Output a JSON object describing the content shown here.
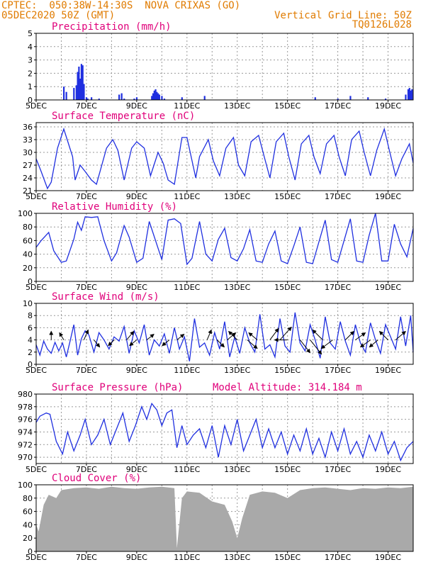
{
  "header": {
    "line1_left": "CPTEC:  050:38W-14:30S  NOVA CRIXAS (GO)",
    "line2_left": "05DEC2020 50Z (GMT)",
    "line2_right": "Vertical Grid Line: 50Z",
    "line3_right": "TQ0126L028"
  },
  "colors": {
    "header": "#e07b00",
    "title": "#e0007a",
    "series": "#1f2fe0",
    "bars": "#1f2fe0",
    "cloud": "#a9a9a9"
  },
  "chart_data": [
    {
      "type": "bar",
      "title": "Precipitation (mm/h)",
      "ylim": [
        0,
        5
      ],
      "yticks": [
        0,
        1,
        2,
        3,
        4,
        5
      ],
      "xlim_days": [
        5,
        20
      ],
      "xticks": [
        "5DEC",
        "7DEC",
        "9DEC",
        "11DEC",
        "13DEC",
        "15DEC",
        "17DEC",
        "19DEC"
      ],
      "x_days": [
        6.1,
        6.2,
        6.5,
        6.6,
        6.65,
        6.7,
        6.75,
        6.8,
        6.85,
        6.9,
        7.0,
        7.05,
        7.2,
        7.5,
        8.3,
        8.4,
        8.5,
        8.9,
        9.0,
        9.6,
        9.65,
        9.7,
        9.75,
        9.8,
        9.85,
        9.9,
        10.0,
        10.1,
        10.8,
        11.7,
        16.1,
        17.0,
        17.5,
        18.2,
        18.9,
        19.7,
        19.8,
        19.85,
        19.9,
        19.95
      ],
      "values": [
        1.0,
        0.6,
        0.9,
        1.1,
        2.1,
        2.5,
        1.6,
        2.7,
        2.6,
        1.2,
        0.2,
        0.1,
        0.2,
        0.1,
        0.4,
        0.5,
        0.1,
        0.1,
        0.2,
        0.3,
        0.5,
        0.7,
        0.8,
        0.6,
        0.5,
        0.4,
        0.3,
        0.1,
        0.2,
        0.3,
        0.2,
        0.1,
        0.3,
        0.2,
        0.1,
        0.4,
        0.8,
        0.9,
        0.7,
        0.8
      ]
    },
    {
      "type": "line",
      "title": "Surface Temperature (nC)",
      "ylim": [
        21,
        37
      ],
      "yticks": [
        21,
        24,
        27,
        30,
        33,
        36
      ],
      "xticks": [
        "5DEC",
        "7DEC",
        "9DEC",
        "11DEC",
        "13DEC",
        "15DEC",
        "17DEC",
        "19DEC"
      ],
      "x_days": [
        5.0,
        5.2,
        5.45,
        5.6,
        5.85,
        6.1,
        6.45,
        6.55,
        6.75,
        6.95,
        7.2,
        7.4,
        7.8,
        8.05,
        8.25,
        8.5,
        8.8,
        9.0,
        9.3,
        9.55,
        9.85,
        10.05,
        10.25,
        10.5,
        10.8,
        11.0,
        11.35,
        11.5,
        11.85,
        12.05,
        12.3,
        12.55,
        12.85,
        13.05,
        13.3,
        13.55,
        13.85,
        14.05,
        14.3,
        14.55,
        14.85,
        15.05,
        15.3,
        15.55,
        15.85,
        16.05,
        16.3,
        16.55,
        16.85,
        17.05,
        17.3,
        17.55,
        17.85,
        18.05,
        18.3,
        18.55,
        18.85,
        19.05,
        19.3,
        19.55,
        19.85,
        20.0
      ],
      "values": [
        28.5,
        25.5,
        21.5,
        23,
        31,
        35.5,
        29,
        23.5,
        27,
        25.5,
        23.5,
        22.5,
        31,
        33,
        30.5,
        23.5,
        31,
        32.5,
        31,
        24.5,
        30,
        27.5,
        23.5,
        22.5,
        33.5,
        33.5,
        24,
        29,
        33,
        28,
        24.5,
        31,
        33.5,
        27,
        24.5,
        32.5,
        34,
        29.5,
        24,
        32.5,
        34.5,
        29,
        23.5,
        32,
        34,
        29,
        25,
        32,
        34,
        29,
        24.5,
        33,
        35,
        30,
        24.5,
        30.5,
        35.5,
        30.5,
        24.5,
        28.5,
        32,
        27.5
      ]
    },
    {
      "type": "line",
      "title": "Relative Humidity (%)",
      "ylim": [
        0,
        100
      ],
      "yticks": [
        0,
        20,
        40,
        60,
        80,
        100
      ],
      "xticks": [
        "5DEC",
        "7DEC",
        "9DEC",
        "11DEC",
        "13DEC",
        "15DEC",
        "17DEC",
        "19DEC"
      ],
      "x_days": [
        5.0,
        5.2,
        5.5,
        5.7,
        6.0,
        6.2,
        6.5,
        6.65,
        6.8,
        6.95,
        7.2,
        7.45,
        7.7,
        8.0,
        8.2,
        8.5,
        8.7,
        9.0,
        9.25,
        9.5,
        9.75,
        10.0,
        10.25,
        10.5,
        10.75,
        11.0,
        11.2,
        11.5,
        11.75,
        12.0,
        12.25,
        12.5,
        12.75,
        13.0,
        13.25,
        13.5,
        13.75,
        14.0,
        14.25,
        14.5,
        14.75,
        15.0,
        15.25,
        15.5,
        15.75,
        16.0,
        16.25,
        16.5,
        16.75,
        17.0,
        17.25,
        17.5,
        17.75,
        18.0,
        18.25,
        18.5,
        18.75,
        19.0,
        19.25,
        19.5,
        19.75,
        20.0
      ],
      "values": [
        50,
        60,
        72,
        45,
        28,
        30,
        62,
        87,
        75,
        95,
        94,
        95,
        60,
        30,
        42,
        82,
        65,
        28,
        34,
        88,
        60,
        32,
        90,
        92,
        85,
        25,
        34,
        88,
        40,
        30,
        62,
        78,
        35,
        30,
        48,
        76,
        30,
        28,
        55,
        74,
        30,
        26,
        52,
        80,
        28,
        26,
        58,
        90,
        32,
        28,
        60,
        92,
        30,
        28,
        68,
        100,
        30,
        30,
        84,
        55,
        36,
        78
      ]
    },
    {
      "type": "line",
      "title": "Surface Wind (m/s)",
      "ylim": [
        0,
        10
      ],
      "yticks": [
        0,
        2,
        4,
        6,
        8,
        10
      ],
      "xticks": [
        "5DEC",
        "7DEC",
        "9DEC",
        "11DEC",
        "13DEC",
        "15DEC",
        "17DEC",
        "19DEC"
      ],
      "x_days": [
        5.0,
        5.15,
        5.3,
        5.45,
        5.6,
        5.75,
        5.9,
        6.05,
        6.2,
        6.35,
        6.5,
        6.65,
        6.8,
        6.95,
        7.1,
        7.3,
        7.5,
        7.7,
        7.9,
        8.1,
        8.3,
        8.5,
        8.7,
        8.9,
        9.1,
        9.3,
        9.5,
        9.7,
        9.9,
        10.1,
        10.3,
        10.5,
        10.7,
        10.9,
        11.1,
        11.3,
        11.5,
        11.7,
        11.9,
        12.1,
        12.3,
        12.5,
        12.7,
        12.9,
        13.1,
        13.3,
        13.5,
        13.7,
        13.9,
        14.1,
        14.3,
        14.5,
        14.7,
        14.9,
        15.1,
        15.3,
        15.5,
        15.7,
        15.9,
        16.1,
        16.3,
        16.5,
        16.7,
        16.9,
        17.1,
        17.3,
        17.5,
        17.7,
        17.9,
        18.1,
        18.3,
        18.5,
        18.7,
        18.9,
        19.1,
        19.3,
        19.5,
        19.7,
        19.9,
        20.0
      ],
      "values": [
        3.2,
        1.5,
        3.8,
        2.5,
        1.8,
        3.6,
        2.2,
        3.5,
        1.2,
        3.8,
        6.5,
        1.5,
        4.2,
        5.5,
        4.8,
        2.0,
        5.2,
        4.0,
        2.5,
        4.5,
        3.8,
        6.2,
        1.8,
        5.5,
        3.5,
        6.5,
        1.5,
        4.0,
        3.0,
        5.0,
        1.8,
        6.0,
        2.5,
        4.5,
        0.5,
        7.5,
        2.8,
        3.5,
        1.5,
        5.2,
        2.5,
        7.0,
        1.2,
        4.5,
        1.8,
        6.0,
        3.5,
        2.0,
        8.2,
        2.5,
        3.2,
        1.2,
        7.5,
        3.0,
        2.0,
        8.5,
        3.5,
        2.2,
        6.5,
        4.0,
        1.0,
        7.8,
        3.5,
        2.5,
        7.0,
        3.8,
        1.5,
        6.5,
        3.5,
        2.0,
        6.8,
        4.0,
        1.8,
        6.5,
        4.5,
        2.5,
        7.8,
        3.0,
        8.0,
        2.0
      ],
      "barb_days": [
        5.6,
        6.1,
        6.9,
        7.3,
        8.1,
        8.6,
        9.0,
        9.4,
        10.3,
        10.6,
        11.8,
        12.2,
        12.6,
        13.0,
        13.4,
        13.8,
        14.3,
        14.7,
        15.0,
        15.5,
        15.9,
        16.4,
        16.8,
        17.3,
        17.7,
        18.3,
        18.6,
        19.0,
        19.3
      ],
      "barb_dx": [
        0,
        -6,
        6,
        8,
        -8,
        10,
        -10,
        10,
        -10,
        10,
        6,
        10,
        12,
        -12,
        14,
        -12,
        12,
        16,
        -18,
        14,
        16,
        -14,
        -16,
        12,
        14,
        -14,
        -12,
        -12,
        14
      ],
      "barb_dy": [
        -12,
        -10,
        -14,
        10,
        8,
        -12,
        8,
        -8,
        8,
        -8,
        -14,
        10,
        -10,
        -12,
        12,
        -10,
        -16,
        -18,
        0,
        18,
        20,
        -14,
        12,
        -12,
        -10,
        10,
        10,
        -12,
        -12
      ]
    },
    {
      "type": "line",
      "title": "Surface Pressure (hPa)",
      "annotation": "Model Altitude: 314.184 m",
      "ylim": [
        969,
        980
      ],
      "yticks": [
        970,
        972,
        974,
        976,
        978,
        980
      ],
      "xticks": [
        "5DEC",
        "7DEC",
        "9DEC",
        "11DEC",
        "13DEC",
        "15DEC",
        "17DEC",
        "19DEC"
      ],
      "x_days": [
        5.0,
        5.15,
        5.4,
        5.55,
        5.8,
        6.05,
        6.25,
        6.5,
        6.75,
        6.95,
        7.2,
        7.45,
        7.7,
        7.95,
        8.2,
        8.45,
        8.7,
        8.95,
        9.2,
        9.4,
        9.6,
        9.8,
        10.0,
        10.2,
        10.4,
        10.6,
        10.8,
        11.0,
        11.25,
        11.5,
        11.75,
        12.0,
        12.25,
        12.5,
        12.75,
        13.0,
        13.25,
        13.5,
        13.75,
        14.0,
        14.25,
        14.5,
        14.75,
        15.0,
        15.25,
        15.5,
        15.75,
        16.0,
        16.25,
        16.5,
        16.75,
        17.0,
        17.25,
        17.5,
        17.75,
        18.0,
        18.25,
        18.5,
        18.75,
        19.0,
        19.25,
        19.5,
        19.75,
        20.0
      ],
      "values": [
        975.5,
        976.5,
        977.0,
        976.8,
        972.5,
        970.5,
        974.0,
        971.0,
        973.5,
        976.0,
        972.0,
        973.5,
        976.0,
        972.0,
        974.5,
        977.0,
        972.5,
        975.0,
        978.0,
        976.0,
        978.5,
        977.5,
        975.0,
        977.0,
        977.5,
        971.5,
        975.0,
        972.0,
        973.5,
        974.5,
        971.5,
        975.0,
        970.0,
        975.0,
        972.0,
        976.0,
        971.0,
        973.5,
        976.0,
        971.5,
        974.5,
        971.5,
        974.0,
        970.5,
        973.5,
        971.0,
        974.5,
        970.5,
        973.0,
        970.0,
        974.0,
        971.0,
        974.5,
        970.5,
        972.5,
        970.0,
        973.5,
        971.0,
        974.0,
        970.5,
        972.5,
        969.5,
        971.5,
        972.5
      ]
    },
    {
      "type": "area",
      "title": "Cloud Cover (%)",
      "ylim": [
        0,
        100
      ],
      "yticks": [
        0,
        20,
        40,
        60,
        80,
        100
      ],
      "xticks": [
        "5DEC",
        "7DEC",
        "9DEC",
        "11DEC",
        "13DEC",
        "15DEC",
        "17DEC",
        "19DEC"
      ],
      "x_days": [
        5.0,
        5.1,
        5.3,
        5.5,
        5.8,
        6.0,
        6.5,
        7.0,
        7.5,
        8.0,
        8.5,
        9.0,
        9.5,
        10.0,
        10.5,
        10.6,
        10.8,
        11.0,
        11.5,
        12.0,
        12.5,
        12.8,
        13.0,
        13.2,
        13.5,
        14.0,
        14.5,
        15.0,
        15.5,
        16.0,
        16.5,
        17.0,
        17.5,
        18.0,
        18.5,
        19.0,
        19.5,
        20.0
      ],
      "values": [
        40,
        30,
        70,
        85,
        80,
        92,
        95,
        96,
        94,
        97,
        95,
        94,
        96,
        97,
        95,
        5,
        80,
        90,
        88,
        75,
        70,
        45,
        20,
        50,
        85,
        90,
        88,
        80,
        92,
        95,
        96,
        94,
        92,
        95,
        94,
        96,
        95,
        97
      ]
    }
  ]
}
